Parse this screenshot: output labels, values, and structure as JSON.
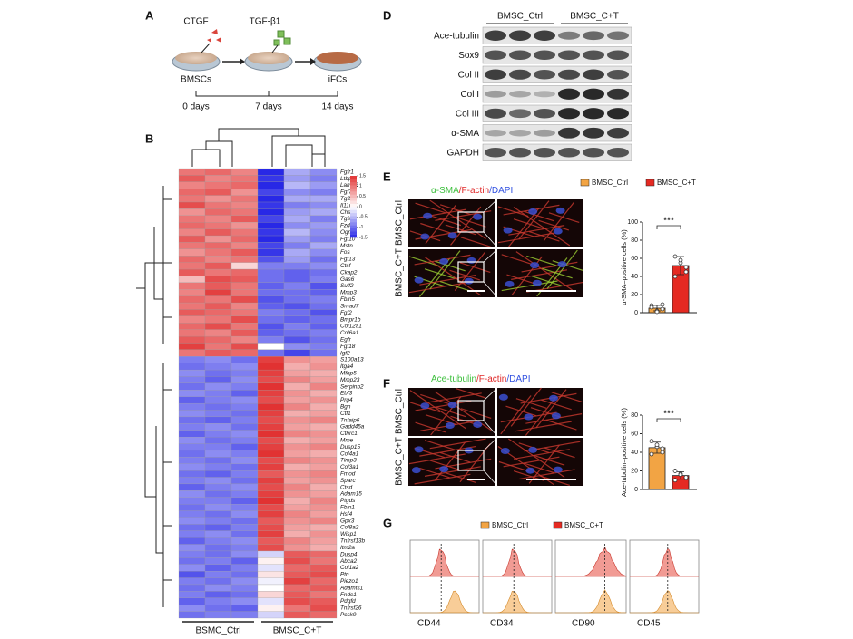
{
  "panel_labels": [
    "A",
    "B",
    "D",
    "E",
    "F",
    "G"
  ],
  "workflow": {
    "factors": [
      "CTGF",
      "TGF-β1"
    ],
    "cells": [
      "BMSCs",
      "iFCs"
    ],
    "timeline": [
      "0 days",
      "7 days",
      "14 days"
    ]
  },
  "heatmap": {
    "groups": [
      "BSMC_Ctrl",
      "BMSC_C+T"
    ],
    "scale_lim": [
      -1.5,
      1.5
    ],
    "scale_ticks": [
      1.5,
      1,
      0.5,
      0,
      -0.5,
      -1,
      -1.5
    ],
    "genes": [
      "Fgfr1",
      "Ltbp1",
      "Lama2",
      "Fgf7",
      "Tgfbr3",
      "Il11ra1",
      "Chst6",
      "Tgfa",
      "Fzd8",
      "Ogn",
      "Fgf10",
      "Mstn",
      "Fos",
      "Fgf13",
      "Ctsf",
      "Ckap2",
      "Gas6",
      "Sulf2",
      "Mmp3",
      "Fbln5",
      "Smad7",
      "Fgf2",
      "Bmpr1b",
      "Col12a1",
      "Col6a1",
      "Egfr",
      "Fgf18",
      "Igf2",
      "S100a13",
      "Itga4",
      "Mfap5",
      "Mmp23",
      "Serpinb2",
      "Ebf3",
      "Prg4",
      "Bgn",
      "Ctf1",
      "Tnfaip6",
      "Gadd45a",
      "Cthrc1",
      "Mme",
      "Dusp15",
      "Col4a1",
      "Timp3",
      "Col3a1",
      "Fmod",
      "Sparc",
      "Ctsd",
      "Adam15",
      "Ptgds",
      "Fbln1",
      "Hsf4",
      "Gpx3",
      "Col8a2",
      "Wisp1",
      "Tnfrsf13b",
      "Itm2a",
      "Dusp4",
      "Abca2",
      "Col1a2",
      "Ptn",
      "Piezo1",
      "Adamts1",
      "Fndc1",
      "Pdgfd",
      "Tnfrsf26",
      "Pcsk9"
    ],
    "values": [
      [
        1.0,
        1.1,
        0.9,
        -1.5,
        -0.6,
        -0.8
      ],
      [
        1.2,
        0.9,
        1.0,
        -1.4,
        -0.7,
        -0.9
      ],
      [
        0.9,
        1.0,
        1.1,
        -1.5,
        -0.5,
        -0.7
      ],
      [
        1.1,
        1.2,
        0.8,
        -1.3,
        -0.8,
        -0.9
      ],
      [
        1.0,
        0.8,
        1.0,
        -1.5,
        -0.6,
        -0.6
      ],
      [
        1.3,
        1.0,
        0.9,
        -1.4,
        -0.9,
        -0.8
      ],
      [
        0.8,
        1.1,
        1.0,
        -1.5,
        -0.7,
        -0.6
      ],
      [
        1.0,
        0.9,
        1.2,
        -1.3,
        -0.6,
        -0.9
      ],
      [
        1.1,
        1.0,
        0.8,
        -1.5,
        -0.8,
        -0.7
      ],
      [
        0.9,
        1.2,
        1.0,
        -1.4,
        -0.5,
        -0.8
      ],
      [
        1.2,
        0.8,
        1.1,
        -1.5,
        -0.7,
        -0.9
      ],
      [
        1.0,
        1.1,
        0.9,
        -1.3,
        -0.9,
        -0.6
      ],
      [
        0.8,
        1.0,
        1.2,
        -1.4,
        -0.6,
        -0.8
      ],
      [
        1.1,
        0.9,
        1.0,
        -1.2,
        -0.7,
        -1.0
      ],
      [
        1.0,
        1.2,
        0.3,
        -0.9,
        -0.9,
        -0.8
      ],
      [
        1.2,
        1.0,
        1.1,
        -1.0,
        -1.1,
        -1.0
      ],
      [
        0.5,
        1.3,
        1.2,
        -1.0,
        -1.1,
        -0.9
      ],
      [
        1.0,
        1.2,
        1.0,
        -1.1,
        -0.9,
        -1.2
      ],
      [
        0.9,
        1.4,
        1.0,
        -1.0,
        -1.0,
        -1.1
      ],
      [
        1.1,
        1.0,
        1.3,
        -1.2,
        -1.0,
        -0.9
      ],
      [
        1.0,
        1.2,
        0.9,
        -1.1,
        -1.2,
        -1.0
      ],
      [
        1.2,
        1.1,
        1.0,
        -0.9,
        -1.0,
        -1.2
      ],
      [
        0.9,
        1.0,
        1.3,
        -1.0,
        -1.1,
        -1.0
      ],
      [
        1.1,
        1.3,
        1.0,
        -1.2,
        -0.9,
        -1.1
      ],
      [
        1.0,
        0.9,
        1.2,
        -1.1,
        -1.0,
        -0.9
      ],
      [
        1.2,
        1.1,
        0.9,
        -0.9,
        -1.2,
        -1.0
      ],
      [
        1.4,
        1.0,
        1.3,
        0.0,
        -0.8,
        -0.9
      ],
      [
        1.0,
        1.2,
        1.1,
        -1.0,
        -1.3,
        -1.0
      ],
      [
        -0.9,
        -0.8,
        -1.0,
        1.4,
        0.8,
        0.7
      ],
      [
        -1.0,
        -0.9,
        -0.8,
        1.5,
        0.6,
        0.8
      ],
      [
        -0.8,
        -1.0,
        -0.9,
        1.4,
        0.7,
        0.6
      ],
      [
        -0.9,
        -1.1,
        -0.8,
        1.3,
        0.9,
        0.7
      ],
      [
        -1.0,
        -0.8,
        -0.9,
        1.5,
        0.6,
        0.9
      ],
      [
        -0.8,
        -0.9,
        -1.1,
        1.4,
        0.8,
        0.6
      ],
      [
        -1.1,
        -0.9,
        -0.8,
        1.3,
        0.7,
        0.8
      ],
      [
        -0.9,
        -1.0,
        -0.9,
        1.5,
        0.9,
        0.6
      ],
      [
        -0.8,
        -0.9,
        -1.0,
        1.4,
        0.6,
        0.7
      ],
      [
        -1.0,
        -1.1,
        -0.9,
        1.3,
        0.8,
        0.9
      ],
      [
        -0.9,
        -0.8,
        -1.0,
        1.4,
        0.7,
        0.6
      ],
      [
        -1.1,
        -0.9,
        -0.8,
        1.5,
        0.9,
        0.8
      ],
      [
        -0.8,
        -1.0,
        -0.9,
        1.3,
        0.6,
        0.7
      ],
      [
        -0.9,
        -0.9,
        -1.1,
        1.4,
        0.8,
        0.9
      ],
      [
        -1.0,
        -0.8,
        -0.9,
        1.5,
        0.7,
        0.6
      ],
      [
        -0.9,
        -1.0,
        -0.8,
        1.3,
        0.9,
        0.8
      ],
      [
        -0.8,
        -0.9,
        -1.0,
        1.4,
        0.6,
        0.7
      ],
      [
        -1.0,
        -1.1,
        -0.9,
        1.2,
        0.8,
        0.9
      ],
      [
        -0.9,
        -0.8,
        -1.0,
        1.4,
        0.7,
        0.8
      ],
      [
        -1.1,
        -0.9,
        -0.8,
        1.3,
        0.9,
        0.6
      ],
      [
        -0.8,
        -1.0,
        -0.9,
        1.4,
        0.8,
        0.7
      ],
      [
        -0.9,
        -0.9,
        -1.1,
        1.5,
        0.6,
        0.9
      ],
      [
        -1.0,
        -0.8,
        -0.9,
        1.3,
        0.7,
        0.8
      ],
      [
        -0.9,
        -1.0,
        -0.8,
        1.4,
        0.9,
        0.7
      ],
      [
        -0.8,
        -0.9,
        -1.0,
        1.2,
        0.8,
        0.9
      ],
      [
        -1.0,
        -1.1,
        -0.9,
        1.3,
        0.7,
        0.6
      ],
      [
        -0.9,
        -0.8,
        -1.0,
        1.4,
        0.6,
        0.8
      ],
      [
        -1.1,
        -0.9,
        -0.8,
        1.2,
        0.9,
        0.7
      ],
      [
        -0.8,
        -1.0,
        -0.9,
        1.3,
        0.8,
        0.6
      ],
      [
        -0.9,
        -1.0,
        -0.8,
        -0.3,
        1.2,
        1.1
      ],
      [
        -1.0,
        -0.9,
        -1.1,
        0.1,
        1.3,
        1.0
      ],
      [
        -0.8,
        -1.1,
        -0.9,
        -0.2,
        1.1,
        1.2
      ],
      [
        -1.2,
        -0.9,
        -1.0,
        0.2,
        1.2,
        1.3
      ],
      [
        -0.9,
        -1.0,
        -0.8,
        -0.1,
        1.4,
        1.1
      ],
      [
        -1.0,
        -0.8,
        -0.9,
        0.0,
        1.1,
        1.2
      ],
      [
        -0.9,
        -1.1,
        -1.0,
        0.3,
        1.2,
        1.0
      ],
      [
        -1.1,
        -0.9,
        -0.8,
        -0.2,
        1.3,
        1.2
      ],
      [
        -0.8,
        -1.0,
        -1.1,
        0.1,
        1.0,
        1.3
      ],
      [
        -1.0,
        -0.9,
        -0.9,
        -0.3,
        1.2,
        1.1
      ]
    ]
  },
  "western": {
    "groups": [
      "BMSC_Ctrl",
      "BMSC_C+T"
    ],
    "proteins": [
      "Ace-tubulin",
      "Sox9",
      "Col II",
      "Col I",
      "Col III",
      "α-SMA",
      "GAPDH"
    ]
  },
  "imaging": [
    {
      "stain": [
        "α-SMA",
        "/F-actin",
        "/DAPI"
      ],
      "stain_colors": [
        "#3cbf3c",
        "#e02828",
        "#3050e0"
      ],
      "rows": [
        "BMSC_Ctrl",
        "BMSC_C+T"
      ]
    },
    {
      "stain": [
        "Ace-tubulin",
        "/F-actin",
        "/DAPI"
      ],
      "stain_colors": [
        "#3cbf3c",
        "#e02828",
        "#3050e0"
      ],
      "rows": [
        "BMSC_Ctrl",
        "BMSC_C+T"
      ]
    }
  ],
  "chart_data": [
    {
      "type": "bar",
      "ylabel": "α-SMA–positive cells (%)",
      "ylim": [
        0,
        100
      ],
      "yticks": [
        0,
        20,
        40,
        60,
        80,
        100
      ],
      "annotation": "***",
      "series": [
        {
          "name": "BMSC_Ctrl",
          "color": "#f2a444",
          "values": [
            5
          ],
          "errors": [
            3
          ],
          "points": [
            8,
            2,
            4,
            6,
            1,
            9
          ]
        },
        {
          "name": "BMSC_C+T",
          "color": "#e52a22",
          "values": [
            52
          ],
          "errors": [
            10
          ],
          "points": [
            62,
            55,
            45,
            40,
            58,
            50
          ]
        }
      ]
    },
    {
      "type": "bar",
      "ylabel": "Ace-tubulin–positive cells (%)",
      "ylim": [
        0,
        80
      ],
      "yticks": [
        0,
        20,
        40,
        60,
        80
      ],
      "annotation": "***",
      "series": [
        {
          "color": "#f2a444",
          "values": [
            45
          ],
          "errors": [
            6
          ],
          "points": [
            52,
            46,
            40,
            38,
            48,
            44
          ]
        },
        {
          "color": "#e52a22",
          "values": [
            15
          ],
          "errors": [
            4
          ],
          "points": [
            20,
            17,
            12,
            10,
            16,
            13
          ]
        }
      ]
    }
  ],
  "flow": {
    "legend": [
      {
        "name": "BMSC_Ctrl",
        "color": "#f2a444"
      },
      {
        "name": "BMSC_C+T",
        "color": "#e52a22"
      }
    ],
    "markers": [
      "CD44",
      "CD34",
      "CD90",
      "CD45"
    ]
  }
}
